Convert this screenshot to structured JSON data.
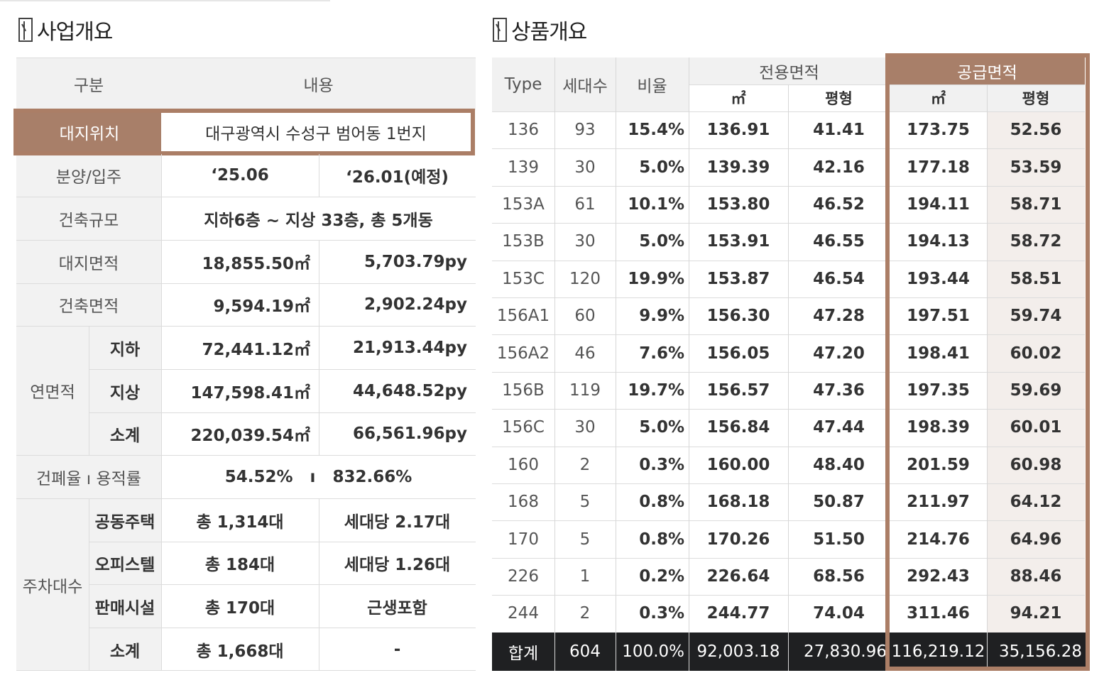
{
  "left": {
    "title": "사업개요",
    "header": {
      "col1": "구분",
      "col2": "내용"
    },
    "site_location": {
      "label": "대지위치",
      "value": "대구광역시 수성구 범어동 1번지"
    },
    "sale": {
      "label": "분양/입주",
      "sale_value": "‘25.06",
      "move_value": "‘26.01(예정)"
    },
    "scale": {
      "label": "건축규모",
      "value": "지하6층 ~ 지상 33층, 총 5개동"
    },
    "site_area": {
      "label": "대지면적",
      "m2": "18,855.50㎡",
      "py": "5,703.79py"
    },
    "building_area": {
      "label": "건축면적",
      "m2": "9,594.19㎡",
      "py": "2,902.24py"
    },
    "gross_area": {
      "label": "연면적",
      "rows": [
        {
          "label": "지하",
          "m2": "72,441.12㎡",
          "py": "21,913.44py"
        },
        {
          "label": "지상",
          "m2": "147,598.41㎡",
          "py": "44,648.52py"
        },
        {
          "label": "소계",
          "m2": "220,039.54㎡",
          "py": "66,561.96py"
        }
      ]
    },
    "ratio": {
      "label": "건폐율 ı 용적률",
      "value": "54.52%   ı   832.66%"
    },
    "parking": {
      "label": "주차대수",
      "rows": [
        {
          "label": "공동주택",
          "total": "총 1,314대",
          "detail": "세대당 2.17대"
        },
        {
          "label": "오피스텔",
          "total": "총 184대",
          "detail": "세대당 1.26대"
        },
        {
          "label": "판매시설",
          "total": "총 170대",
          "detail": "근생포함"
        },
        {
          "label": "소계",
          "total": "총 1,668대",
          "detail": "-"
        }
      ]
    }
  },
  "right": {
    "title": "상품개요",
    "header": {
      "type": "Type",
      "units": "세대수",
      "ratio": "비율",
      "exclusive": "전용면적",
      "supply": "공급면적",
      "m2": "㎡",
      "py": "평형"
    },
    "rows": [
      {
        "type": "136",
        "units": "93",
        "ratio": "15.4%",
        "ex_m2": "136.91",
        "ex_py": "41.41",
        "sup_m2": "173.75",
        "sup_py": "52.56"
      },
      {
        "type": "139",
        "units": "30",
        "ratio": "5.0%",
        "ex_m2": "139.39",
        "ex_py": "42.16",
        "sup_m2": "177.18",
        "sup_py": "53.59"
      },
      {
        "type": "153A",
        "units": "61",
        "ratio": "10.1%",
        "ex_m2": "153.80",
        "ex_py": "46.52",
        "sup_m2": "194.11",
        "sup_py": "58.71"
      },
      {
        "type": "153B",
        "units": "30",
        "ratio": "5.0%",
        "ex_m2": "153.91",
        "ex_py": "46.55",
        "sup_m2": "194.13",
        "sup_py": "58.72"
      },
      {
        "type": "153C",
        "units": "120",
        "ratio": "19.9%",
        "ex_m2": "153.87",
        "ex_py": "46.54",
        "sup_m2": "193.44",
        "sup_py": "58.51"
      },
      {
        "type": "156A1",
        "units": "60",
        "ratio": "9.9%",
        "ex_m2": "156.30",
        "ex_py": "47.28",
        "sup_m2": "197.51",
        "sup_py": "59.74"
      },
      {
        "type": "156A2",
        "units": "46",
        "ratio": "7.6%",
        "ex_m2": "156.05",
        "ex_py": "47.20",
        "sup_m2": "198.41",
        "sup_py": "60.02"
      },
      {
        "type": "156B",
        "units": "119",
        "ratio": "19.7%",
        "ex_m2": "156.57",
        "ex_py": "47.36",
        "sup_m2": "197.35",
        "sup_py": "59.69"
      },
      {
        "type": "156C",
        "units": "30",
        "ratio": "5.0%",
        "ex_m2": "156.84",
        "ex_py": "47.44",
        "sup_m2": "198.39",
        "sup_py": "60.01"
      },
      {
        "type": "160",
        "units": "2",
        "ratio": "0.3%",
        "ex_m2": "160.00",
        "ex_py": "48.40",
        "sup_m2": "201.59",
        "sup_py": "60.98"
      },
      {
        "type": "168",
        "units": "5",
        "ratio": "0.8%",
        "ex_m2": "168.18",
        "ex_py": "50.87",
        "sup_m2": "211.97",
        "sup_py": "64.12"
      },
      {
        "type": "170",
        "units": "5",
        "ratio": "0.8%",
        "ex_m2": "170.26",
        "ex_py": "51.50",
        "sup_m2": "214.76",
        "sup_py": "64.96"
      },
      {
        "type": "226",
        "units": "1",
        "ratio": "0.2%",
        "ex_m2": "226.64",
        "ex_py": "68.56",
        "sup_m2": "292.43",
        "sup_py": "88.46"
      },
      {
        "type": "244",
        "units": "2",
        "ratio": "0.3%",
        "ex_m2": "244.77",
        "ex_py": "74.04",
        "sup_m2": "311.46",
        "sup_py": "94.21"
      }
    ],
    "total": {
      "type": "합계",
      "units": "604",
      "ratio": "100.0%",
      "ex_m2": "92,003.18",
      "ex_py": "27,830.96",
      "sup_m2": "116,219.12",
      "sup_py": "35,156.28"
    }
  },
  "colors": {
    "accent": "#ab7e66",
    "header_bg": "#f1f1f1",
    "supply_header": "#a87f69",
    "supply_body": "#f3eeeb",
    "total_row": "#1f2022"
  }
}
